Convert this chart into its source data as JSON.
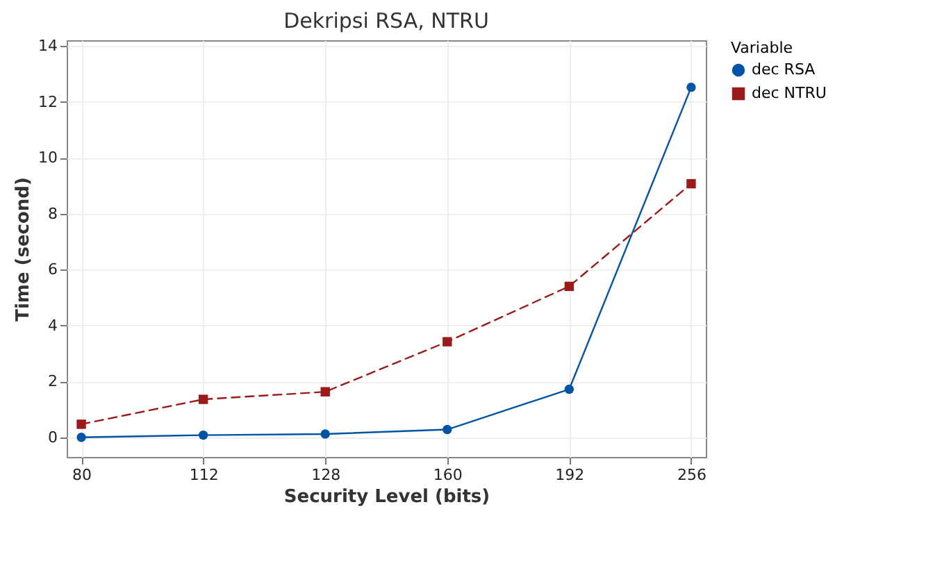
{
  "chart_data": {
    "type": "line",
    "title": "Dekripsi RSA, NTRU",
    "xlabel": "Security Level (bits)",
    "ylabel": "Time (second)",
    "legend_title": "Variable",
    "categories": [
      "80",
      "112",
      "128",
      "160",
      "192",
      "256"
    ],
    "series": [
      {
        "name": "dec RSA",
        "color": "#0054a6",
        "marker": "circle",
        "line_style": "solid",
        "values": [
          0,
          0.08,
          0.12,
          0.28,
          1.72,
          12.52
        ]
      },
      {
        "name": "dec NTRU",
        "color": "#9b1b1b",
        "marker": "square",
        "line_style": "dashed",
        "values": [
          0.47,
          1.36,
          1.63,
          3.42,
          5.4,
          9.07
        ]
      }
    ],
    "ylim": [
      -0.7,
      14.2
    ],
    "yticks": [
      0,
      2,
      4,
      6,
      8,
      10,
      12,
      14
    ],
    "grid": true,
    "legend": "top right"
  }
}
